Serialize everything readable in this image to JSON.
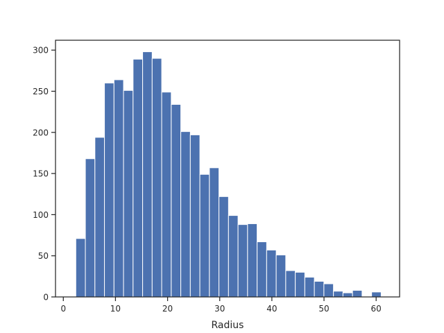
{
  "chart_data": {
    "type": "bar",
    "xlabel": "Radius",
    "ylabel": "",
    "xlim": [
      -1.5,
      64.5
    ],
    "ylim": [
      0,
      312
    ],
    "xticks": [
      0,
      10,
      20,
      30,
      40,
      50,
      60
    ],
    "yticks": [
      0,
      50,
      100,
      150,
      200,
      250,
      300
    ],
    "bar_color": "#4c72b0",
    "bin_width": 1.83,
    "bins": [
      {
        "x0": 2.4,
        "count": 71
      },
      {
        "x0": 4.23,
        "count": 168
      },
      {
        "x0": 6.06,
        "count": 194
      },
      {
        "x0": 7.89,
        "count": 260
      },
      {
        "x0": 9.72,
        "count": 264
      },
      {
        "x0": 11.55,
        "count": 251
      },
      {
        "x0": 13.38,
        "count": 289
      },
      {
        "x0": 15.21,
        "count": 298
      },
      {
        "x0": 17.04,
        "count": 290
      },
      {
        "x0": 18.87,
        "count": 249
      },
      {
        "x0": 20.7,
        "count": 234
      },
      {
        "x0": 22.53,
        "count": 201
      },
      {
        "x0": 24.36,
        "count": 197
      },
      {
        "x0": 26.19,
        "count": 149
      },
      {
        "x0": 28.02,
        "count": 157
      },
      {
        "x0": 29.85,
        "count": 122
      },
      {
        "x0": 31.68,
        "count": 99
      },
      {
        "x0": 33.51,
        "count": 88
      },
      {
        "x0": 35.34,
        "count": 89
      },
      {
        "x0": 37.17,
        "count": 67
      },
      {
        "x0": 39.0,
        "count": 57
      },
      {
        "x0": 40.83,
        "count": 51
      },
      {
        "x0": 42.66,
        "count": 32
      },
      {
        "x0": 44.49,
        "count": 30
      },
      {
        "x0": 46.32,
        "count": 24
      },
      {
        "x0": 48.15,
        "count": 19
      },
      {
        "x0": 49.98,
        "count": 16
      },
      {
        "x0": 51.81,
        "count": 7
      },
      {
        "x0": 53.64,
        "count": 5
      },
      {
        "x0": 55.47,
        "count": 8
      },
      {
        "x0": 57.3,
        "count": 0
      },
      {
        "x0": 59.13,
        "count": 6
      }
    ]
  }
}
